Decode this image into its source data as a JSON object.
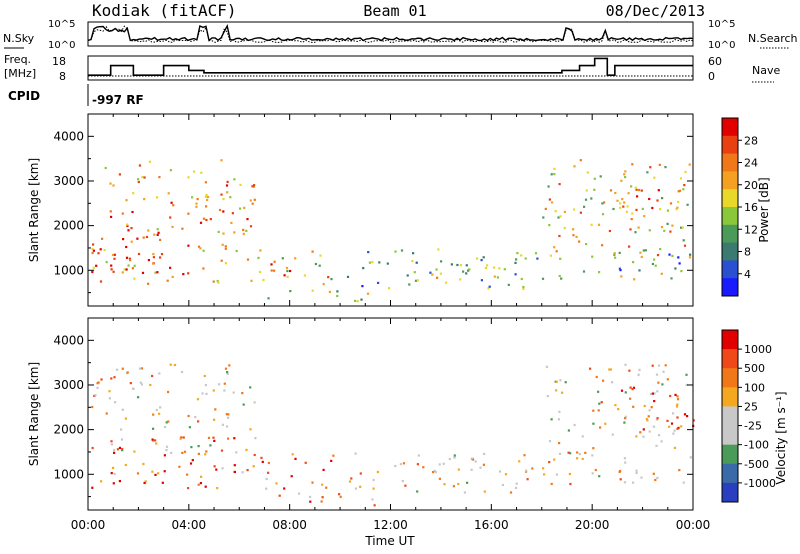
{
  "header": {
    "title": "Kodiak (fitACF)",
    "beam": "Beam 01",
    "date": "08/Dec/2013"
  },
  "top_panels": {
    "nsky_label": "N.Sky",
    "nsearch_label": "N.Search",
    "noise_ticks": [
      "10^5",
      "10^0"
    ],
    "freq_label_1": "Freq.",
    "freq_label_2": "[MHz]",
    "freq_ticks": [
      "18",
      "8"
    ],
    "nave_label": "Nave",
    "nave_ticks": [
      "60",
      "0"
    ],
    "cpid_label": "CPID",
    "cpid_value": "-997 RF"
  },
  "colors": {
    "power_scale": [
      "#1a1aff",
      "#2a4fd0",
      "#3a7a70",
      "#4a9a5a",
      "#8ac83a",
      "#e8d82a",
      "#f4a020",
      "#f07818",
      "#e84010",
      "#e00000"
    ],
    "velocity_scale": [
      "#e00000",
      "#f04818",
      "#f07818",
      "#f4a820",
      "#c8c8c8",
      "#c8c8c8",
      "#4a9a5a",
      "#3a6aa8",
      "#2a3fc0"
    ]
  },
  "chart_data": [
    {
      "type": "heatmap",
      "name": "Power",
      "ylabel": "Slant Range [km]",
      "yticks": [
        1000,
        2000,
        3000,
        4000
      ],
      "ylim": [
        200,
        4500
      ],
      "xlim": [
        0,
        24
      ],
      "colorbar_label": "Power [dB]",
      "colorbar_ticks": [
        "4",
        "8",
        "12",
        "16",
        "20",
        "24",
        "28"
      ],
      "colorbar_range": [
        0,
        30
      ],
      "regions": [
        {
          "t0": 0.1,
          "t1": 6.6,
          "r0": 700,
          "r1": 3500,
          "level": 0.7
        },
        {
          "t0": 0.1,
          "t1": 3.0,
          "r0": 900,
          "r1": 1900,
          "level": 0.9
        },
        {
          "t0": 6.7,
          "t1": 9.8,
          "r0": 700,
          "r1": 1500,
          "level": 0.6
        },
        {
          "t0": 6.9,
          "t1": 8.0,
          "r0": 600,
          "r1": 1300,
          "level": 0.95
        },
        {
          "t0": 7.0,
          "t1": 11.5,
          "r0": 300,
          "r1": 600,
          "level": 0.45
        },
        {
          "t0": 10.2,
          "t1": 17.8,
          "r0": 600,
          "r1": 1500,
          "level": 0.3
        },
        {
          "t0": 13.0,
          "t1": 16.5,
          "r0": 800,
          "r1": 1300,
          "level": 0.55
        },
        {
          "t0": 18.0,
          "t1": 24.0,
          "r0": 800,
          "r1": 3500,
          "level": 0.6
        },
        {
          "t0": 20.8,
          "t1": 24.0,
          "r0": 2100,
          "r1": 2900,
          "level": 0.7
        },
        {
          "t0": 20.8,
          "t1": 24.0,
          "r0": 1000,
          "r1": 1500,
          "level": 0.2
        }
      ]
    },
    {
      "type": "heatmap",
      "name": "Velocity",
      "ylabel": "Slant Range [km]",
      "yticks": [
        1000,
        2000,
        3000,
        4000
      ],
      "ylim": [
        200,
        4500
      ],
      "xlim": [
        0,
        24
      ],
      "xlabel": "Time UT",
      "xticks": [
        "00:00",
        "04:00",
        "08:00",
        "12:00",
        "16:00",
        "20:00",
        "00:00"
      ],
      "colorbar_label": "Velocity [m s⁻¹]",
      "colorbar_ticks": [
        "1000",
        "500",
        "100",
        "25",
        "-25",
        "-100",
        "-500",
        "-1000"
      ],
      "regions": [
        {
          "t0": 0.1,
          "t1": 6.6,
          "r0": 1500,
          "r1": 3500,
          "level": 0.45
        },
        {
          "t0": 0.1,
          "t1": 6.6,
          "r0": 700,
          "r1": 1900,
          "level": 0.2
        },
        {
          "t0": 6.7,
          "t1": 9.8,
          "r0": 700,
          "r1": 1500,
          "level": 0.25
        },
        {
          "t0": 7.0,
          "t1": 11.5,
          "r0": 300,
          "r1": 600,
          "level": 0.3
        },
        {
          "t0": 10.2,
          "t1": 17.8,
          "r0": 600,
          "r1": 1500,
          "level": 0.45
        },
        {
          "t0": 13.0,
          "t1": 15.5,
          "r0": 1100,
          "r1": 1400,
          "level": 0.3
        },
        {
          "t0": 18.0,
          "t1": 24.0,
          "r0": 800,
          "r1": 3500,
          "level": 0.45
        },
        {
          "t0": 21.0,
          "t1": 24.0,
          "r0": 2000,
          "r1": 3000,
          "level": 0.15
        }
      ]
    }
  ]
}
